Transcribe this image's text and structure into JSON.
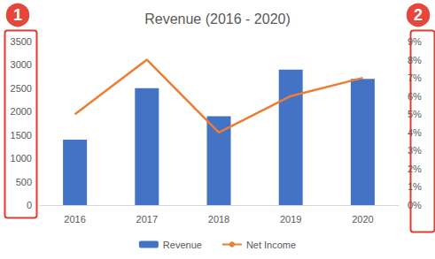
{
  "chart_data": {
    "type": "bar",
    "title": "Revenue (2016 - 2020)",
    "categories": [
      "2016",
      "2017",
      "2018",
      "2019",
      "2020"
    ],
    "series": [
      {
        "name": "Revenue",
        "type": "bar",
        "color": "#4472c4",
        "values": [
          1400,
          2500,
          1900,
          2900,
          2700
        ]
      },
      {
        "name": "Net Income",
        "type": "line",
        "color": "#ed7d31",
        "axis": "y2",
        "values": [
          5,
          8,
          4,
          6,
          7
        ]
      }
    ],
    "ylim": [
      0,
      3500
    ],
    "yticks": [
      0,
      500,
      1000,
      1500,
      2000,
      2500,
      3000,
      3500
    ],
    "y2lim": [
      0,
      9
    ],
    "y2ticks": [
      {
        "value": 0,
        "label": "0%"
      },
      {
        "value": 1,
        "label": "1%"
      },
      {
        "value": 2,
        "label": "2%"
      },
      {
        "value": 3,
        "label": "3%"
      },
      {
        "value": 4,
        "label": "4%"
      },
      {
        "value": 5,
        "label": "5%"
      },
      {
        "value": 6,
        "label": "6%"
      },
      {
        "value": 7,
        "label": "7%"
      },
      {
        "value": 8,
        "label": "8%"
      },
      {
        "value": 9,
        "label": "9%"
      }
    ],
    "grid": false,
    "legend": "bottom",
    "annotations": [
      "1",
      "2"
    ]
  }
}
